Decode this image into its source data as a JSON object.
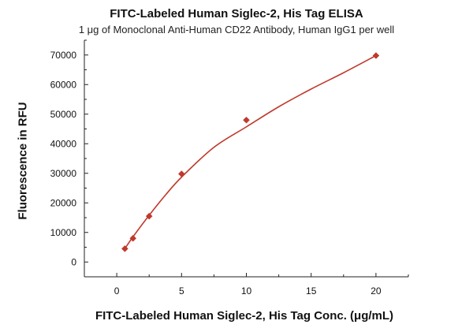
{
  "chart_data": {
    "type": "scatter",
    "title": "FITC-Labeled Human Siglec-2, His Tag ELISA",
    "subtitle": "1 μg of Monoclonal Anti-Human CD22 Antibody, Human IgG1 per well",
    "xlabel": "FITC-Labeled Human Siglec-2, His Tag Conc. (μg/mL)",
    "ylabel": "Fluorescence in RFU",
    "xlim": [
      -2.5,
      22.5
    ],
    "ylim": [
      -5000,
      75000
    ],
    "xticks": [
      0,
      5,
      10,
      15,
      20
    ],
    "yticks": [
      0,
      10000,
      20000,
      30000,
      40000,
      50000,
      60000,
      70000
    ],
    "grid": false,
    "colors": {
      "series": "#c0392b",
      "axis": "#222222"
    },
    "series": [
      {
        "marker": "diamond",
        "x": [
          0.625,
          1.25,
          2.5,
          5,
          10,
          20
        ],
        "y": [
          4500,
          8000,
          15500,
          29800,
          48000,
          69800
        ]
      }
    ],
    "fit_curve": {
      "x": [
        0.625,
        1.25,
        2.5,
        3.75,
        5,
        7.5,
        10,
        12.5,
        15,
        17.5,
        20
      ],
      "y": [
        4500,
        8500,
        15800,
        22600,
        28700,
        38800,
        45700,
        52500,
        58500,
        64000,
        69800
      ]
    }
  }
}
